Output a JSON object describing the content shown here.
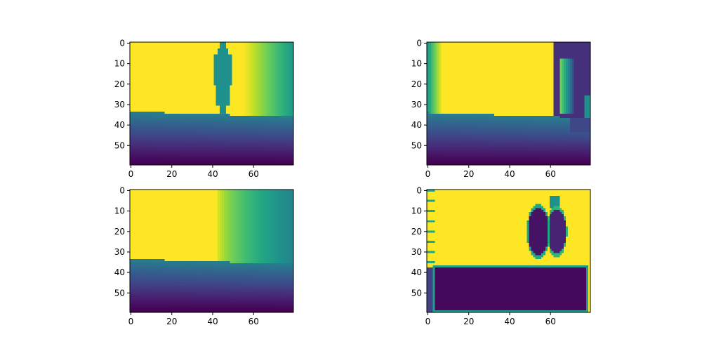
{
  "chart_data": [
    {
      "type": "heatmap",
      "panel": "top-left",
      "colormap": "viridis",
      "rows": 60,
      "cols": 80,
      "xlim": [
        0,
        79
      ],
      "ylim": [
        59,
        0
      ],
      "xticks": [
        0,
        20,
        40,
        60
      ],
      "yticks": [
        0,
        10,
        20,
        30,
        40,
        50
      ],
      "xtick_labels": [
        "0",
        "20",
        "40",
        "60"
      ],
      "ytick_labels": [
        "0",
        "10",
        "20",
        "30",
        "40",
        "50"
      ],
      "description": "yellow wall, gradient on right beyond x~55, teal human silhouette at x~40-48, floor gradient from row ~34 down"
    },
    {
      "type": "heatmap",
      "panel": "top-right",
      "colormap": "viridis",
      "rows": 60,
      "cols": 80,
      "xlim": [
        0,
        79
      ],
      "ylim": [
        59,
        0
      ],
      "xticks": [
        0,
        20,
        40,
        60
      ],
      "yticks": [
        0,
        10,
        20,
        30,
        40,
        50
      ],
      "xtick_labels": [
        "0",
        "20",
        "40",
        "60"
      ],
      "ytick_labels": [
        "0",
        "10",
        "20",
        "30",
        "40",
        "50"
      ],
      "description": "green gradient band at left edge, yellow block, dark purple region on right beyond x~62 with green edge, floor gradient"
    },
    {
      "type": "heatmap",
      "panel": "bottom-left",
      "colormap": "viridis",
      "rows": 60,
      "cols": 80,
      "xlim": [
        0,
        79
      ],
      "ylim": [
        59,
        0
      ],
      "xticks": [
        0,
        20,
        40,
        60
      ],
      "yticks": [
        0,
        10,
        20,
        30,
        40,
        50
      ],
      "xtick_labels": [
        "0",
        "20",
        "40",
        "60"
      ],
      "ytick_labels": [
        "0",
        "10",
        "20",
        "30",
        "40",
        "50"
      ],
      "description": "yellow wall, gradient to teal beyond x~42, floor gradient from row ~34 down"
    },
    {
      "type": "heatmap",
      "panel": "bottom-right",
      "colormap": "viridis",
      "rows": 60,
      "cols": 80,
      "xlim": [
        0,
        79
      ],
      "ylim": [
        59,
        0
      ],
      "xticks": [
        0,
        20,
        40,
        60
      ],
      "yticks": [
        0,
        10,
        20,
        30,
        40,
        50
      ],
      "xtick_labels": [
        "0",
        "20",
        "40",
        "60"
      ],
      "ytick_labels": [
        "0",
        "10",
        "20",
        "30",
        "40",
        "50"
      ],
      "description": "mostly yellow, large dark purple rectangle rows ~38-58 cols ~4-77, dark blobs near x~48-65 rows ~5-33"
    }
  ]
}
